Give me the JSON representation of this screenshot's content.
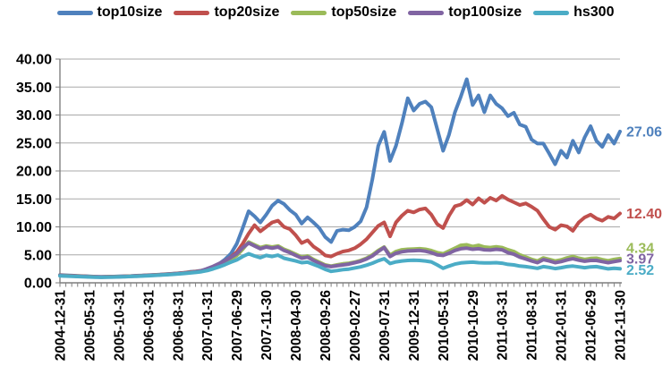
{
  "chart_data": {
    "type": "line",
    "title": "",
    "grid": true,
    "legend_position": "top",
    "n_points": 96,
    "x_label_interval": 5,
    "x_tick_labels": [
      "2004-12-31",
      "2005-05-31",
      "2005-10-31",
      "2006-03-31",
      "2006-08-31",
      "2007-01-31",
      "2007-06-29",
      "2007-11-30",
      "2008-04-30",
      "2008-09-26",
      "2009-02-27",
      "2009-07-31",
      "2009-12-31",
      "2010-05-31",
      "2010-10-29",
      "2011-03-31",
      "2011-08-31",
      "2012-01-31",
      "2012-06-29",
      "2012-11-30"
    ],
    "y_axis": {
      "min": 0,
      "max": 40,
      "step": 5,
      "tick_labels": [
        "0.00",
        "5.00",
        "10.00",
        "15.00",
        "20.00",
        "25.00",
        "30.00",
        "35.00",
        "40.00"
      ]
    },
    "colors": {
      "gridline": "#a8a8a8",
      "axis": "#7f7f7f",
      "tick": "#808080"
    },
    "series": [
      {
        "name": "top10size",
        "color": "#4F81BD",
        "end_label": "27.06",
        "values": [
          1.4,
          1.35,
          1.3,
          1.25,
          1.2,
          1.15,
          1.1,
          1.08,
          1.1,
          1.12,
          1.15,
          1.18,
          1.22,
          1.28,
          1.32,
          1.38,
          1.42,
          1.48,
          1.55,
          1.62,
          1.7,
          1.8,
          1.95,
          2.05,
          2.2,
          2.5,
          2.9,
          3.4,
          4.2,
          5.2,
          7.0,
          9.8,
          12.8,
          11.9,
          10.8,
          12.2,
          13.8,
          14.7,
          14.1,
          13.0,
          12.2,
          10.6,
          11.7,
          10.8,
          9.8,
          8.2,
          7.3,
          9.3,
          9.5,
          9.4,
          10.0,
          11.0,
          13.5,
          18.5,
          24.5,
          27.0,
          21.8,
          24.5,
          28.5,
          33.0,
          30.8,
          32.0,
          32.4,
          31.4,
          27.5,
          23.6,
          26.5,
          30.5,
          33.3,
          36.4,
          31.8,
          33.5,
          30.5,
          33.5,
          32.0,
          31.2,
          29.8,
          30.4,
          28.3,
          27.9,
          25.6,
          24.9,
          24.9,
          23.1,
          21.2,
          23.6,
          22.4,
          25.4,
          23.3,
          26.0,
          28.0,
          25.4,
          24.3,
          26.4,
          24.9,
          27.06
        ]
      },
      {
        "name": "top20size",
        "color": "#C0504D",
        "end_label": "12.40",
        "values": [
          1.35,
          1.3,
          1.26,
          1.22,
          1.18,
          1.12,
          1.08,
          1.05,
          1.07,
          1.1,
          1.12,
          1.16,
          1.2,
          1.25,
          1.3,
          1.35,
          1.4,
          1.46,
          1.52,
          1.6,
          1.68,
          1.78,
          1.9,
          2.0,
          2.15,
          2.45,
          2.8,
          3.3,
          3.9,
          4.6,
          5.5,
          7.0,
          8.8,
          10.3,
          9.2,
          10.0,
          10.8,
          11.1,
          10.0,
          9.6,
          8.5,
          7.1,
          7.6,
          6.5,
          5.8,
          4.9,
          4.7,
          5.2,
          5.6,
          5.8,
          6.2,
          6.9,
          7.8,
          9.0,
          10.2,
          10.8,
          8.3,
          10.8,
          12.0,
          12.9,
          12.6,
          13.1,
          13.3,
          12.2,
          10.5,
          9.8,
          12.0,
          13.7,
          14.0,
          14.8,
          14.0,
          15.1,
          14.3,
          15.2,
          14.7,
          15.55,
          14.9,
          14.4,
          13.9,
          14.2,
          13.6,
          12.9,
          11.4,
          10.0,
          9.5,
          10.3,
          10.1,
          9.3,
          10.8,
          11.7,
          12.2,
          11.5,
          11.1,
          11.8,
          11.5,
          12.4
        ]
      },
      {
        "name": "top50size",
        "color": "#9BBB59",
        "end_label": "4.34",
        "values": [
          1.3,
          1.26,
          1.22,
          1.18,
          1.14,
          1.1,
          1.06,
          1.03,
          1.05,
          1.08,
          1.1,
          1.14,
          1.18,
          1.22,
          1.27,
          1.32,
          1.37,
          1.43,
          1.49,
          1.56,
          1.64,
          1.73,
          1.84,
          1.94,
          2.08,
          2.35,
          2.65,
          3.05,
          3.55,
          4.2,
          4.9,
          6.0,
          7.3,
          6.8,
          6.3,
          6.6,
          6.4,
          6.6,
          6.0,
          5.6,
          5.1,
          4.6,
          4.8,
          4.2,
          3.7,
          3.2,
          3.0,
          3.2,
          3.4,
          3.5,
          3.7,
          4.0,
          4.4,
          5.0,
          5.8,
          6.4,
          4.95,
          5.6,
          5.9,
          6.0,
          6.05,
          6.1,
          6.0,
          5.76,
          5.4,
          5.2,
          5.7,
          6.2,
          6.7,
          6.8,
          6.5,
          6.7,
          6.4,
          6.3,
          6.45,
          6.3,
          5.9,
          5.6,
          5.0,
          4.6,
          4.2,
          3.9,
          4.45,
          4.2,
          3.9,
          4.1,
          4.45,
          4.7,
          4.4,
          4.2,
          4.35,
          4.4,
          4.15,
          3.95,
          4.2,
          4.34
        ]
      },
      {
        "name": "top100size",
        "color": "#8064A2",
        "end_label": "3.97",
        "values": [
          1.3,
          1.25,
          1.21,
          1.17,
          1.13,
          1.09,
          1.05,
          1.02,
          1.04,
          1.07,
          1.09,
          1.13,
          1.17,
          1.21,
          1.26,
          1.31,
          1.36,
          1.42,
          1.48,
          1.55,
          1.63,
          1.72,
          1.83,
          1.93,
          2.1,
          2.55,
          2.95,
          3.45,
          3.95,
          4.55,
          5.2,
          6.3,
          7.1,
          6.6,
          6.1,
          6.4,
          6.2,
          6.4,
          5.8,
          5.4,
          4.9,
          4.4,
          4.6,
          4.0,
          3.5,
          3.05,
          2.9,
          3.05,
          3.2,
          3.35,
          3.6,
          3.85,
          4.25,
          4.8,
          5.6,
          6.3,
          4.7,
          5.3,
          5.55,
          5.7,
          5.75,
          5.8,
          5.65,
          5.4,
          5.0,
          4.9,
          5.3,
          5.8,
          6.1,
          6.2,
          6.0,
          6.1,
          5.9,
          5.85,
          6.0,
          5.9,
          5.4,
          5.1,
          4.6,
          4.25,
          3.9,
          3.6,
          4.15,
          3.9,
          3.6,
          3.8,
          4.1,
          4.3,
          4.05,
          3.85,
          4.0,
          4.0,
          3.8,
          3.6,
          3.8,
          3.97
        ]
      },
      {
        "name": "hs300",
        "color": "#4BACC6",
        "end_label": "2.52",
        "values": [
          1.25,
          1.2,
          1.16,
          1.12,
          1.08,
          1.04,
          1.0,
          0.98,
          1.0,
          1.03,
          1.05,
          1.09,
          1.13,
          1.17,
          1.22,
          1.27,
          1.32,
          1.38,
          1.44,
          1.5,
          1.58,
          1.66,
          1.76,
          1.86,
          1.98,
          2.2,
          2.5,
          2.85,
          3.25,
          3.7,
          4.1,
          4.7,
          5.2,
          4.8,
          4.5,
          4.9,
          4.7,
          4.95,
          4.4,
          4.15,
          3.9,
          3.6,
          3.7,
          3.3,
          2.9,
          2.4,
          2.05,
          2.2,
          2.35,
          2.45,
          2.65,
          2.85,
          3.15,
          3.5,
          3.95,
          4.3,
          3.45,
          3.75,
          3.9,
          4.0,
          4.05,
          4.0,
          3.9,
          3.75,
          3.2,
          2.6,
          3.0,
          3.35,
          3.55,
          3.65,
          3.7,
          3.6,
          3.55,
          3.55,
          3.6,
          3.5,
          3.3,
          3.2,
          3.0,
          2.9,
          2.75,
          2.6,
          2.9,
          2.75,
          2.55,
          2.7,
          2.9,
          3.0,
          2.85,
          2.7,
          2.85,
          2.9,
          2.7,
          2.5,
          2.6,
          2.52
        ]
      }
    ]
  }
}
